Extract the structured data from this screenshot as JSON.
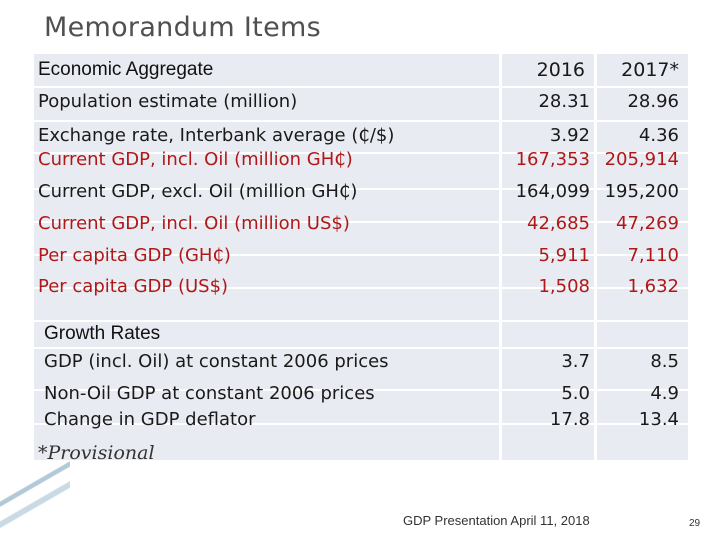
{
  "title": "Memorandum Items",
  "header": {
    "label": "Economic Aggregate",
    "col2016": "2016",
    "col2017": "2017*"
  },
  "rows": [
    {
      "label": "Population estimate (million)",
      "v2016": "28.31",
      "v2017": "28.96",
      "color": "#1a1a1a"
    },
    {
      "label": "Exchange rate, Interbank average (₵/$)",
      "v2016": "3.92",
      "v2017": "4.36",
      "color": "#1a1a1a"
    },
    {
      "label": "Current GDP,  incl. Oil (million GH₵)",
      "v2016": "167,353",
      "v2017": "205,914",
      "color": "#b01818"
    },
    {
      "label": "Current GDP, excl. Oil (million GH₵)",
      "v2016": "164,099",
      "v2017": "195,200",
      "color": "#1a1a1a"
    },
    {
      "label": "Current GDP, incl. Oil (million US$)",
      "v2016": "42,685",
      "v2017": "47,269",
      "color": "#b01818"
    },
    {
      "label": "Per capita GDP (GH₵)",
      "v2016": "5,911",
      "v2017": "7,110",
      "color": "#b01818"
    },
    {
      "label": "Per capita GDP (US$)",
      "v2016": "1,508",
      "v2017": "1,632",
      "color": "#b01818"
    }
  ],
  "growth": {
    "heading": "Growth Rates",
    "rows": [
      {
        "label": "GDP (incl. Oil) at constant 2006 prices",
        "v2016": "3.7",
        "v2017": "8.5"
      },
      {
        "label": "Non-Oil GDP at constant 2006 prices",
        "v2016": "5.0",
        "v2017": "4.9"
      },
      {
        "label": "Change in GDP deflator",
        "v2016": "17.8",
        "v2017": "13.4"
      }
    ]
  },
  "note": "*Provisional",
  "footer": "GDP Presentation April 11, 2018",
  "page_number": "29"
}
